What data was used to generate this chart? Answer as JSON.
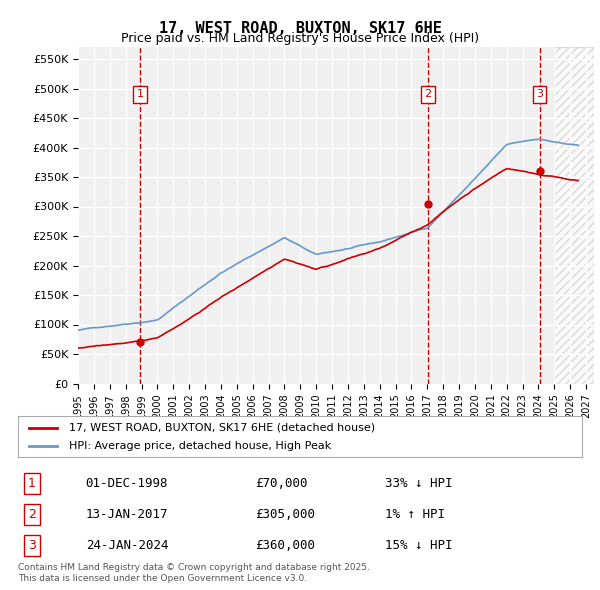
{
  "title": "17, WEST ROAD, BUXTON, SK17 6HE",
  "subtitle": "Price paid vs. HM Land Registry's House Price Index (HPI)",
  "ylabel_ticks": [
    "£0",
    "£50K",
    "£100K",
    "£150K",
    "£200K",
    "£250K",
    "£300K",
    "£350K",
    "£400K",
    "£450K",
    "£500K",
    "£550K"
  ],
  "ytick_values": [
    0,
    50000,
    100000,
    150000,
    200000,
    250000,
    300000,
    350000,
    400000,
    450000,
    500000,
    550000
  ],
  "ylim": [
    0,
    570000
  ],
  "xlim_start": 1995.0,
  "xlim_end": 2027.5,
  "sale_dates": [
    1998.92,
    2017.04,
    2024.07
  ],
  "sale_prices": [
    70000,
    305000,
    360000
  ],
  "sale_labels": [
    "1",
    "2",
    "3"
  ],
  "vline_color": "#cc0000",
  "vline_style": "dashed",
  "sale_marker_color": "#cc0000",
  "hpi_line_color": "#6699cc",
  "price_line_color": "#cc0000",
  "background_color": "#f0f0f0",
  "grid_color": "#ffffff",
  "legend_entries": [
    "17, WEST ROAD, BUXTON, SK17 6HE (detached house)",
    "HPI: Average price, detached house, High Peak"
  ],
  "table_entries": [
    {
      "num": "1",
      "date": "01-DEC-1998",
      "price": "£70,000",
      "rel": "33% ↓ HPI"
    },
    {
      "num": "2",
      "date": "13-JAN-2017",
      "price": "£305,000",
      "rel": "1% ↑ HPI"
    },
    {
      "num": "3",
      "date": "24-JAN-2024",
      "price": "£360,000",
      "rel": "15% ↓ HPI"
    }
  ],
  "footer": "Contains HM Land Registry data © Crown copyright and database right 2025.\nThis data is licensed under the Open Government Licence v3.0.",
  "hatch_region_start": 2025.0,
  "hatch_region_end": 2027.5
}
